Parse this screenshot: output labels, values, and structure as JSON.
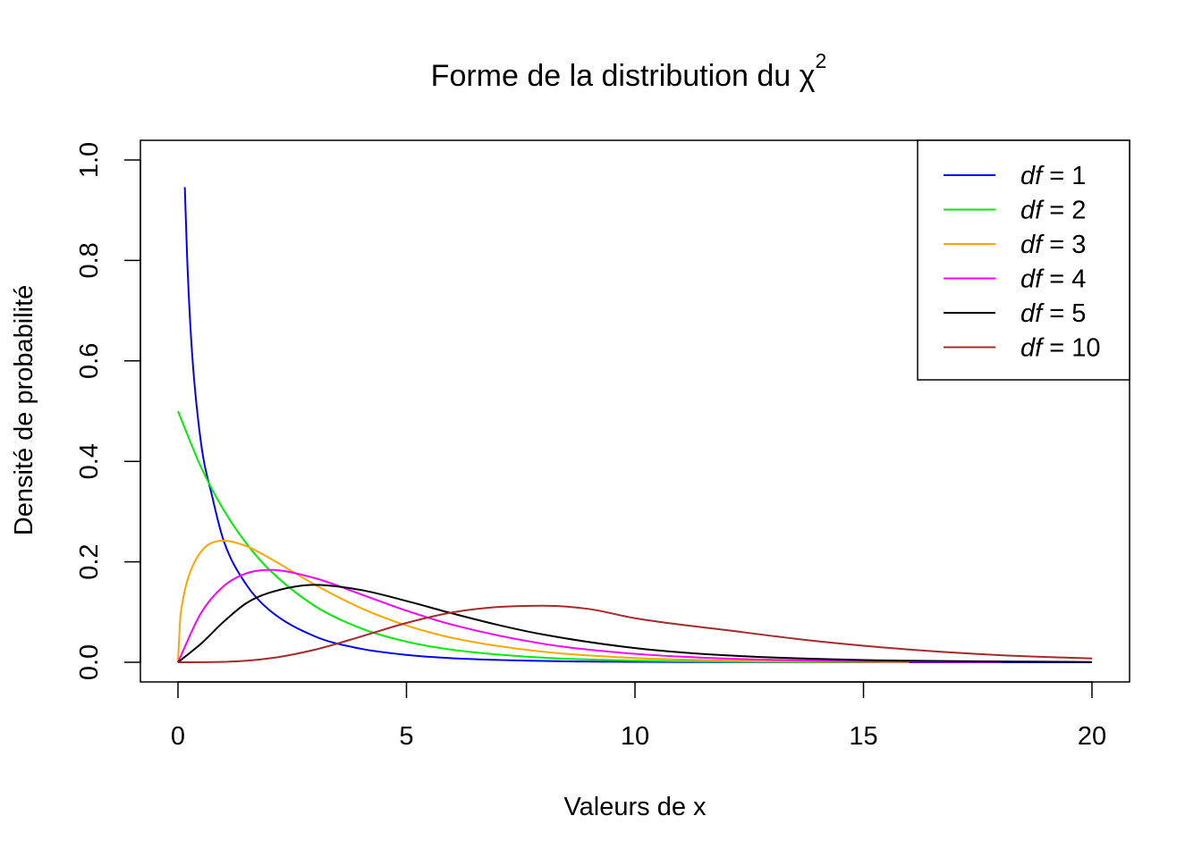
{
  "chart_data": {
    "type": "line",
    "title": "Forme de la distribution du χ",
    "title_superscript": "2",
    "xlabel": "Valeurs de x",
    "ylabel": "Densité de probabilité",
    "xlim": [
      0,
      20
    ],
    "ylim": [
      0,
      1.04
    ],
    "x_ticks": [
      "0",
      "5",
      "10",
      "15",
      "20"
    ],
    "y_ticks": [
      "0.0",
      "0.2",
      "0.4",
      "0.6",
      "0.8",
      "1.0"
    ],
    "grid": false,
    "legend_position": "top-right",
    "series": [
      {
        "legend_var": "df",
        "legend_rest": " = 1",
        "color": "#0000FF",
        "x": [
          0.15,
          0.2,
          0.3,
          0.5,
          0.75,
          1,
          1.5,
          2,
          3,
          4,
          5,
          6,
          8,
          10,
          12,
          15,
          20
        ],
        "values": [
          0.9458,
          0.807,
          0.6269,
          0.4394,
          0.3295,
          0.242,
          0.1539,
          0.1038,
          0.0514,
          0.027,
          0.0146,
          0.0081,
          0.0026,
          0.0009,
          0.0003,
          0.0,
          0.0
        ]
      },
      {
        "legend_var": "df",
        "legend_rest": " = 2",
        "color": "#00EE00",
        "x": [
          0,
          0.5,
          1,
          1.5,
          2,
          3,
          4,
          5,
          6,
          8,
          10,
          12,
          16
        ],
        "values": [
          0.5,
          0.3894,
          0.3033,
          0.2362,
          0.1839,
          0.1116,
          0.0677,
          0.041,
          0.0249,
          0.0092,
          0.0034,
          0.0012,
          0.0002
        ]
      },
      {
        "legend_var": "df",
        "legend_rest": " = 3",
        "color": "#FFA500",
        "x": [
          0,
          0.05,
          0.1,
          0.2,
          0.5,
          1,
          1.5,
          2,
          3,
          4,
          5,
          6,
          8,
          10,
          12,
          16
        ],
        "values": [
          0,
          0.0871,
          0.12,
          0.1614,
          0.2197,
          0.242,
          0.2309,
          0.2076,
          0.1542,
          0.108,
          0.0732,
          0.0485,
          0.0208,
          0.0085,
          0.0034,
          0.0005
        ]
      },
      {
        "legend_var": "df",
        "legend_rest": " = 4",
        "color": "#FF00FF",
        "x": [
          0,
          0.5,
          1,
          1.5,
          2,
          3,
          4,
          5,
          6,
          8,
          10,
          12,
          15,
          18
        ],
        "values": [
          0,
          0.0974,
          0.1516,
          0.1771,
          0.1839,
          0.1673,
          0.1353,
          0.1026,
          0.0747,
          0.0366,
          0.0168,
          0.0074,
          0.0021,
          0.0006
        ]
      },
      {
        "legend_var": "df",
        "legend_rest": " = 5",
        "color": "#000000",
        "x": [
          0,
          0.5,
          1,
          1.5,
          2,
          3,
          4,
          5,
          6,
          7,
          8,
          10,
          12,
          15,
          20
        ],
        "values": [
          0,
          0.0366,
          0.0807,
          0.1179,
          0.1384,
          0.1542,
          0.144,
          0.122,
          0.0973,
          0.0744,
          0.0551,
          0.0283,
          0.0137,
          0.0045,
          0.0005
        ]
      },
      {
        "legend_var": "df",
        "legend_rest": " = 10",
        "color": "#A52A2A",
        "x": [
          0,
          1,
          2,
          3,
          4,
          5,
          6,
          7,
          8,
          9,
          10,
          12,
          14,
          16,
          18,
          20
        ],
        "values": [
          0,
          0.0008,
          0.0077,
          0.0252,
          0.0511,
          0.0783,
          0.0992,
          0.11,
          0.1126,
          0.106,
          0.0877,
          0.064,
          0.0418,
          0.0253,
          0.0141,
          0.0076
        ]
      }
    ]
  }
}
